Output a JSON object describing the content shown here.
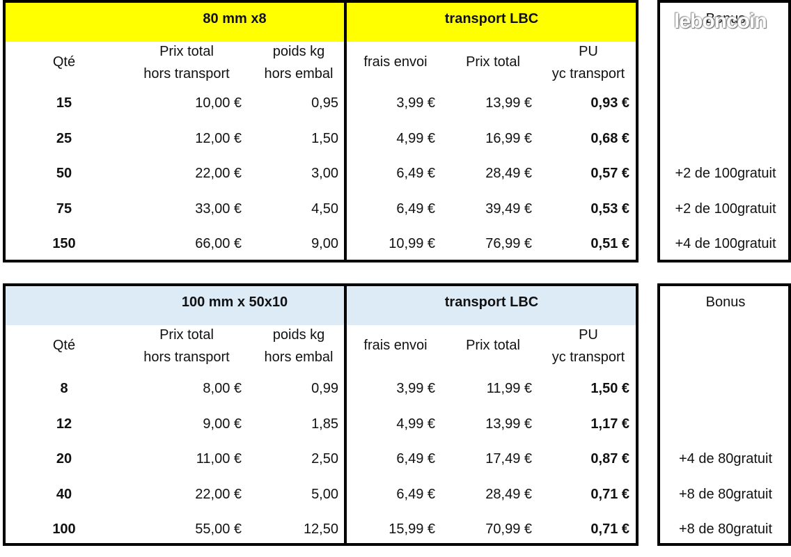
{
  "colors": {
    "table1_header_bg": "#ffff00",
    "table2_header_bg": "#ddebf7",
    "border": "#000000"
  },
  "watermark": "leboncoin",
  "tables": [
    {
      "product": "80 mm x8",
      "transport": "transport LBC",
      "bonus_header": "Bonus",
      "columns": {
        "qte": "Qté",
        "prix_total_ht_1": "Prix total",
        "prix_total_ht_2": "hors transport",
        "poids_1": "poids kg",
        "poids_2": "hors embal",
        "frais_envoi": "frais envoi",
        "prix_total": "Prix total",
        "pu_1": "PU",
        "pu_2": "yc transport"
      },
      "rows": [
        {
          "qte": "15",
          "prix_ht": "10,00 €",
          "poids": "0,95",
          "frais": "3,99 €",
          "total": "13,99 €",
          "pu": "0,93 €",
          "bonus": ""
        },
        {
          "qte": "25",
          "prix_ht": "12,00 €",
          "poids": "1,50",
          "frais": "4,99 €",
          "total": "16,99 €",
          "pu": "0,68 €",
          "bonus": ""
        },
        {
          "qte": "50",
          "prix_ht": "22,00 €",
          "poids": "3,00",
          "frais": "6,49 €",
          "total": "28,49 €",
          "pu": "0,57 €",
          "bonus": "+2 de 100gratuit"
        },
        {
          "qte": "75",
          "prix_ht": "33,00 €",
          "poids": "4,50",
          "frais": "6,49 €",
          "total": "39,49 €",
          "pu": "0,53 €",
          "bonus": "+2 de 100gratuit"
        },
        {
          "qte": "150",
          "prix_ht": "66,00 €",
          "poids": "9,00",
          "frais": "10,99 €",
          "total": "76,99 €",
          "pu": "0,51 €",
          "bonus": "+4 de 100gratuit"
        }
      ]
    },
    {
      "product": "100 mm x 50x10",
      "transport": "transport LBC",
      "bonus_header": "Bonus",
      "columns": {
        "qte": "Qté",
        "prix_total_ht_1": "Prix total",
        "prix_total_ht_2": "hors transport",
        "poids_1": "poids kg",
        "poids_2": "hors embal",
        "frais_envoi": "frais envoi",
        "prix_total": "Prix total",
        "pu_1": "PU",
        "pu_2": "yc transport"
      },
      "rows": [
        {
          "qte": "8",
          "prix_ht": "8,00 €",
          "poids": "0,99",
          "frais": "3,99 €",
          "total": "11,99 €",
          "pu": "1,50 €",
          "bonus": ""
        },
        {
          "qte": "12",
          "prix_ht": "9,00 €",
          "poids": "1,85",
          "frais": "4,99 €",
          "total": "13,99 €",
          "pu": "1,17 €",
          "bonus": ""
        },
        {
          "qte": "20",
          "prix_ht": "11,00 €",
          "poids": "2,50",
          "frais": "6,49 €",
          "total": "17,49 €",
          "pu": "0,87 €",
          "bonus": "+4 de 80gratuit"
        },
        {
          "qte": "40",
          "prix_ht": "22,00 €",
          "poids": "5,00",
          "frais": "6,49 €",
          "total": "28,49 €",
          "pu": "0,71 €",
          "bonus": "+8 de 80gratuit"
        },
        {
          "qte": "100",
          "prix_ht": "55,00 €",
          "poids": "12,50",
          "frais": "15,99 €",
          "total": "70,99 €",
          "pu": "0,71 €",
          "bonus": "+8 de 80gratuit"
        }
      ]
    }
  ]
}
